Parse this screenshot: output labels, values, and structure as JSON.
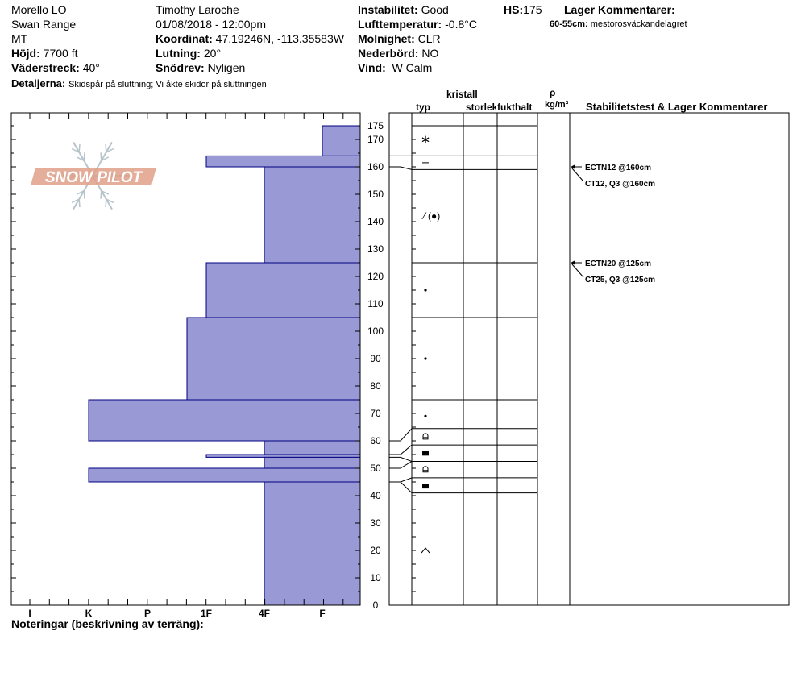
{
  "header": {
    "col1": [
      "Morello LO",
      "Swan Range",
      "MT"
    ],
    "hojd_label": "Höjd:",
    "hojd_value": "7700 ft",
    "vader_label": "Väderstreck:",
    "vader_value": "40°",
    "detalj_label": "Detaljerna:",
    "detalj_value": "Skidspår på sluttning;  Vi åkte skidor på sluttningen",
    "observer": "Timothy  Laroche",
    "datetime": "01/08/2018 - 12:00pm",
    "koord_label": "Koordinat:",
    "koord_value": "47.19246N, -113.35583W",
    "lutning_label": "Lutning:",
    "lutning_value": "20°",
    "snodrev_label": "Snödrev:",
    "snodrev_value": "Nyligen",
    "instab_label": "Instabilitet:",
    "instab_value": "Good",
    "lufttemp_label": "Lufttemperatur:",
    "lufttemp_value": "-0.8°C",
    "molnighet_label": "Molnighet:",
    "molnighet_value": "CLR",
    "nederbord_label": "Nederbörd:",
    "nederbord_value": "NO",
    "vind_label": "Vind:",
    "vind_value": "W Calm",
    "hs_label": "HS:",
    "hs_value": "175",
    "lager_label": "Lager Kommentarer:",
    "lager_comment_depth": "60-55cm:",
    "lager_comment_text": "mestorosväckandelagret"
  },
  "logo_text": "SNOW PILOT",
  "notes_label": "Noteringar (beskrivning av terräng):",
  "colors": {
    "bar_fill": "#9999d6",
    "bar_stroke": "#000080",
    "logo": "#e0a088"
  },
  "column_headers": {
    "kristall": "kristall",
    "typ": "typ",
    "storlek": "storlek",
    "fukthalt": "fukthalt",
    "rho": "ρ",
    "density_unit": "kg/m³",
    "stability": "Stabilitetstest & Lager Kommentarer"
  },
  "chart_data": {
    "type": "bar",
    "orientation": "horizontal",
    "title": "",
    "xlabel": "",
    "ylabel": "",
    "x_categories": [
      "I",
      "K",
      "P",
      "1F",
      "4F",
      "F"
    ],
    "ylim": [
      0,
      180
    ],
    "y_ticks": [
      0,
      10,
      20,
      30,
      40,
      50,
      60,
      70,
      80,
      90,
      100,
      110,
      120,
      130,
      140,
      150,
      160,
      170,
      175
    ],
    "layers": [
      {
        "top": 175,
        "bottom": 164,
        "hardness": "F",
        "grain": "new-snow-icon"
      },
      {
        "top": 164,
        "bottom": 160,
        "hardness": "1F",
        "grain": "surface-hoar-icon"
      },
      {
        "top": 160,
        "bottom": 125,
        "hardness": "4F",
        "grain": "rounding-facets-icon"
      },
      {
        "top": 125,
        "bottom": 105,
        "hardness": "1F",
        "grain": "rounded-grains-icon"
      },
      {
        "top": 105,
        "bottom": 75,
        "hardness": "P-",
        "grain": "rounded-grains-icon"
      },
      {
        "top": 75,
        "bottom": 60,
        "hardness": "K",
        "grain": "rounded-grains-icon"
      },
      {
        "top": 60,
        "bottom": 55,
        "hardness": "4F",
        "grain": "depth-hoar-icon"
      },
      {
        "top": 55,
        "bottom": 54,
        "hardness": "1F",
        "grain": "faceted-crystals-icon"
      },
      {
        "top": 54,
        "bottom": 50,
        "hardness": "4F",
        "grain": "faceted-crystals-icon"
      },
      {
        "top": 50,
        "bottom": 45,
        "hardness": "K",
        "grain": "depth-hoar-icon"
      },
      {
        "top": 45,
        "bottom": 0,
        "hardness": "4F",
        "grain": "faceted-crystals-icon"
      }
    ],
    "grain_rows": [
      {
        "y": 170,
        "grain": "new-snow-icon"
      },
      {
        "y": 161.5,
        "grain": "surface-hoar-icon"
      },
      {
        "y": 142,
        "grain": "rounding-facets-icon"
      },
      {
        "y": 115,
        "grain": "rounded-grains-icon"
      },
      {
        "y": 90,
        "grain": "rounded-grains-icon"
      },
      {
        "y": 69,
        "grain": "rounded-grains-icon"
      },
      {
        "y": 61.5,
        "grain": "depth-hoar-icon"
      },
      {
        "y": 55.5,
        "grain": "faceted-crystals-icon"
      },
      {
        "y": 49.5,
        "grain": "depth-hoar-icon"
      },
      {
        "y": 43.5,
        "grain": "faceted-crystals-icon"
      },
      {
        "y": 20,
        "grain": "crust-icon"
      }
    ],
    "right_layer_lines": [
      175,
      164,
      159,
      125,
      105,
      75,
      64.5,
      58.5,
      52.5,
      46.5,
      41
    ],
    "tests": [
      {
        "depth": 160,
        "labels": [
          "ECTN12 @160cm",
          "CT12, Q3 @160cm"
        ]
      },
      {
        "depth": 125,
        "labels": [
          "ECTN20 @125cm",
          "CT25, Q3 @125cm"
        ]
      }
    ]
  }
}
